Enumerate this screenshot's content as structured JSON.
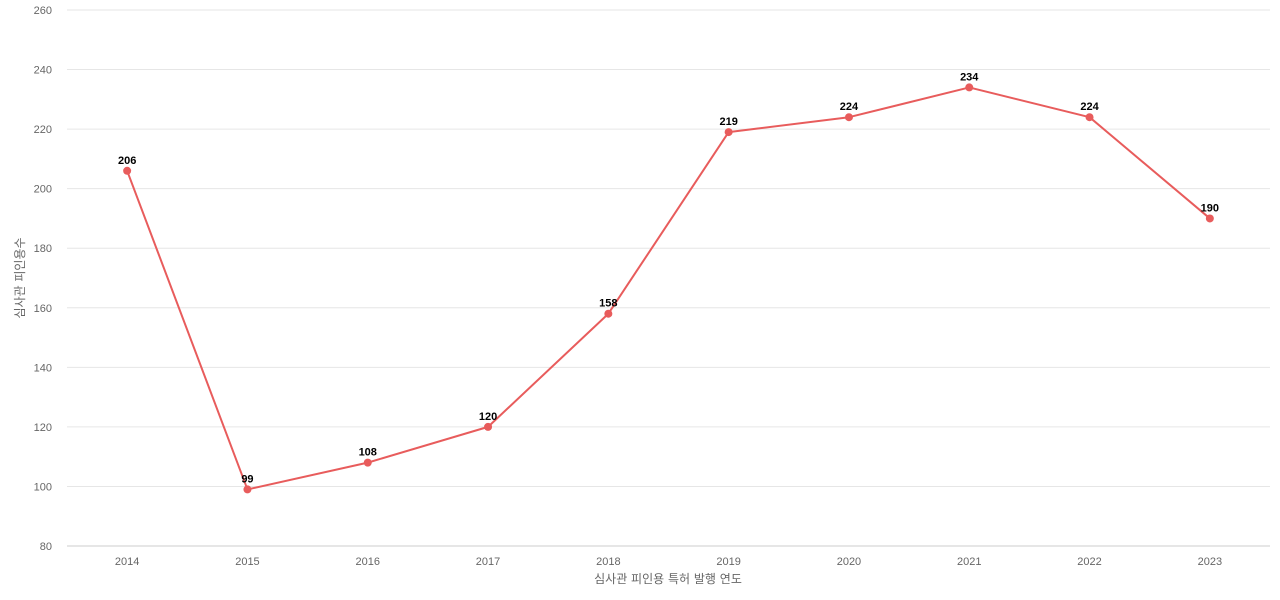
{
  "chart_data": {
    "type": "line",
    "title": "",
    "xlabel": "심사관 피인용 특허 발행 연도",
    "ylabel": "심사관 피인용수",
    "categories": [
      "2014",
      "2015",
      "2016",
      "2017",
      "2018",
      "2019",
      "2020",
      "2021",
      "2022",
      "2023"
    ],
    "series": [
      {
        "values": [
          206,
          99,
          108,
          120,
          158,
          219,
          224,
          234,
          224,
          190
        ]
      }
    ],
    "ylim": [
      80,
      260
    ],
    "yticks": [
      80,
      100,
      120,
      140,
      160,
      180,
      200,
      220,
      240,
      260
    ],
    "grid": true,
    "data_labels": true,
    "colors": {
      "line": "#e85c5c",
      "grid": "#e6e6e6",
      "axis": "#cccccc",
      "label": "#000000",
      "tick": "#666666"
    }
  }
}
